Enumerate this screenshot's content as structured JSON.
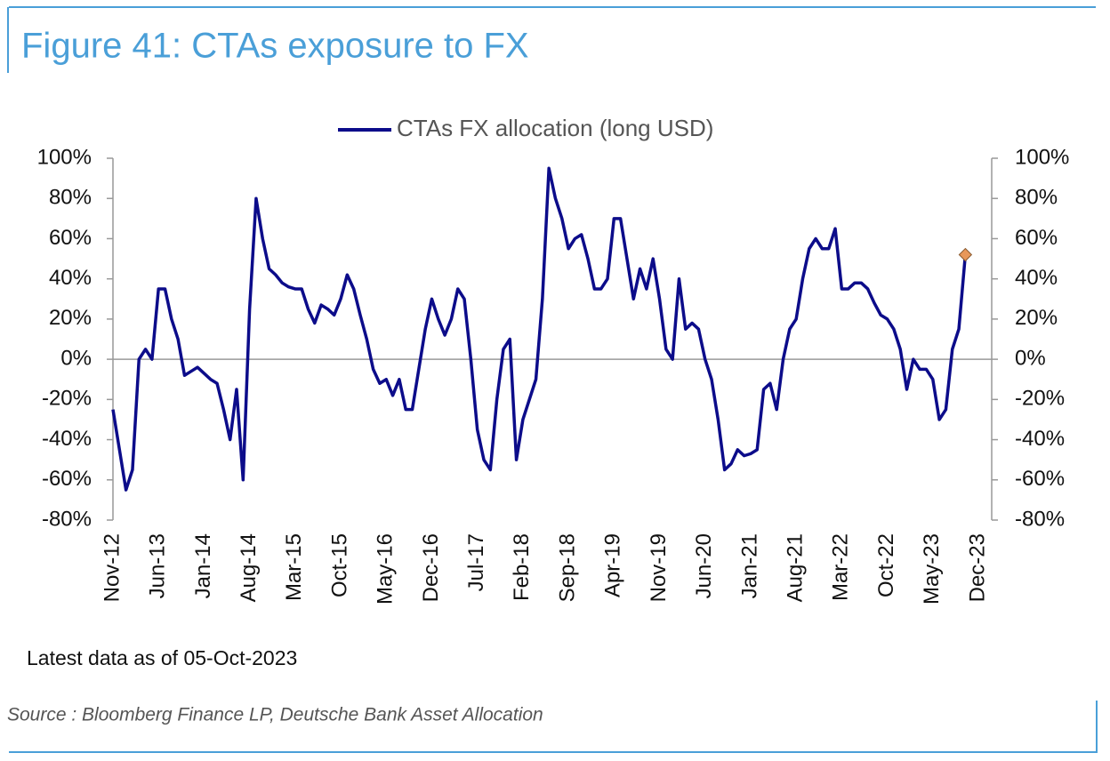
{
  "chart_data": {
    "type": "line",
    "title": "Figure 41: CTAs exposure to FX",
    "note": "Latest data as of 05-Oct-2023",
    "source": "Source : Bloomberg Finance LP, Deutsche Bank Asset Allocation",
    "x": [
      "Nov-12",
      "Dec-12",
      "Jan-13",
      "Feb-13",
      "Mar-13",
      "Apr-13",
      "May-13",
      "Jun-13",
      "Jul-13",
      "Aug-13",
      "Sep-13",
      "Oct-13",
      "Nov-13",
      "Dec-13",
      "Jan-14",
      "Feb-14",
      "Mar-14",
      "Apr-14",
      "May-14",
      "Jun-14",
      "Jul-14",
      "Aug-14",
      "Sep-14",
      "Oct-14",
      "Nov-14",
      "Dec-14",
      "Jan-15",
      "Feb-15",
      "Mar-15",
      "Apr-15",
      "May-15",
      "Jun-15",
      "Jul-15",
      "Aug-15",
      "Sep-15",
      "Oct-15",
      "Nov-15",
      "Dec-15",
      "Jan-16",
      "Feb-16",
      "Mar-16",
      "Apr-16",
      "May-16",
      "Jun-16",
      "Jul-16",
      "Aug-16",
      "Sep-16",
      "Oct-16",
      "Nov-16",
      "Dec-16",
      "Jan-17",
      "Feb-17",
      "Mar-17",
      "Apr-17",
      "May-17",
      "Jun-17",
      "Jul-17",
      "Aug-17",
      "Sep-17",
      "Oct-17",
      "Nov-17",
      "Dec-17",
      "Jan-18",
      "Feb-18",
      "Mar-18",
      "Apr-18",
      "May-18",
      "Jun-18",
      "Jul-18",
      "Aug-18",
      "Sep-18",
      "Oct-18",
      "Nov-18",
      "Dec-18",
      "Jan-19",
      "Feb-19",
      "Mar-19",
      "Apr-19",
      "May-19",
      "Jun-19",
      "Jul-19",
      "Aug-19",
      "Sep-19",
      "Oct-19",
      "Nov-19",
      "Dec-19",
      "Jan-20",
      "Feb-20",
      "Mar-20",
      "Apr-20",
      "May-20",
      "Jun-20",
      "Jul-20",
      "Aug-20",
      "Sep-20",
      "Oct-20",
      "Nov-20",
      "Dec-20",
      "Jan-21",
      "Feb-21",
      "Mar-21",
      "Apr-21",
      "May-21",
      "Jun-21",
      "Jul-21",
      "Aug-21",
      "Sep-21",
      "Oct-21",
      "Nov-21",
      "Dec-21",
      "Jan-22",
      "Feb-22",
      "Mar-22",
      "Apr-22",
      "May-22",
      "Jun-22",
      "Jul-22",
      "Aug-22",
      "Sep-22",
      "Oct-22",
      "Nov-22",
      "Dec-22",
      "Jan-23",
      "Feb-23",
      "Mar-23",
      "Apr-23",
      "May-23",
      "Jun-23",
      "Jul-23",
      "Aug-23",
      "Sep-23",
      "Oct-23"
    ],
    "series": [
      {
        "name": "CTAs FX allocation (long USD)",
        "color": "#0c0c8a",
        "values": [
          -25,
          -45,
          -65,
          -55,
          0,
          5,
          0,
          35,
          35,
          20,
          10,
          -8,
          -6,
          -4,
          -7,
          -10,
          -12,
          -25,
          -40,
          -15,
          -60,
          25,
          80,
          60,
          45,
          42,
          38,
          36,
          35,
          35,
          25,
          18,
          27,
          25,
          22,
          30,
          42,
          35,
          22,
          10,
          -5,
          -12,
          -10,
          -18,
          -10,
          -25,
          -25,
          -5,
          15,
          30,
          20,
          12,
          20,
          35,
          30,
          0,
          -35,
          -50,
          -55,
          -20,
          5,
          10,
          -50,
          -30,
          -20,
          -10,
          30,
          95,
          80,
          70,
          55,
          60,
          62,
          50,
          35,
          35,
          40,
          70,
          70,
          50,
          30,
          45,
          35,
          50,
          30,
          5,
          0,
          40,
          15,
          18,
          15,
          0,
          -10,
          -30,
          -55,
          -52,
          -45,
          -48,
          -47,
          -45,
          -15,
          -12,
          -25,
          0,
          15,
          20,
          40,
          55,
          60,
          55,
          55,
          65,
          35,
          35,
          38,
          38,
          35,
          28,
          22,
          20,
          15,
          5,
          -15,
          0,
          -5,
          -5,
          -10,
          -30,
          -25,
          5,
          15,
          52
        ]
      }
    ],
    "latest_marker_color": "#e8985a",
    "xlim": [
      "Nov-12",
      "Dec-23"
    ],
    "xticks": [
      "Nov-12",
      "Jun-13",
      "Jan-14",
      "Aug-14",
      "Mar-15",
      "Oct-15",
      "May-16",
      "Dec-16",
      "Jul-17",
      "Feb-18",
      "Sep-18",
      "Apr-19",
      "Nov-19",
      "Jun-20",
      "Jan-21",
      "Aug-21",
      "Mar-22",
      "Oct-22",
      "May-23",
      "Dec-23"
    ],
    "ylim": [
      -80,
      100
    ],
    "yticks": [
      {
        "value": 100,
        "label": "100%"
      },
      {
        "value": 80,
        "label": "80%"
      },
      {
        "value": 60,
        "label": "60%"
      },
      {
        "value": 40,
        "label": "40%"
      },
      {
        "value": 20,
        "label": "20%"
      },
      {
        "value": 0,
        "label": "0%"
      },
      {
        "value": -20,
        "label": "-20%"
      },
      {
        "value": -40,
        "label": "-40%"
      },
      {
        "value": -60,
        "label": "-60%"
      },
      {
        "value": -80,
        "label": "-80%"
      }
    ],
    "zero_line": true
  }
}
